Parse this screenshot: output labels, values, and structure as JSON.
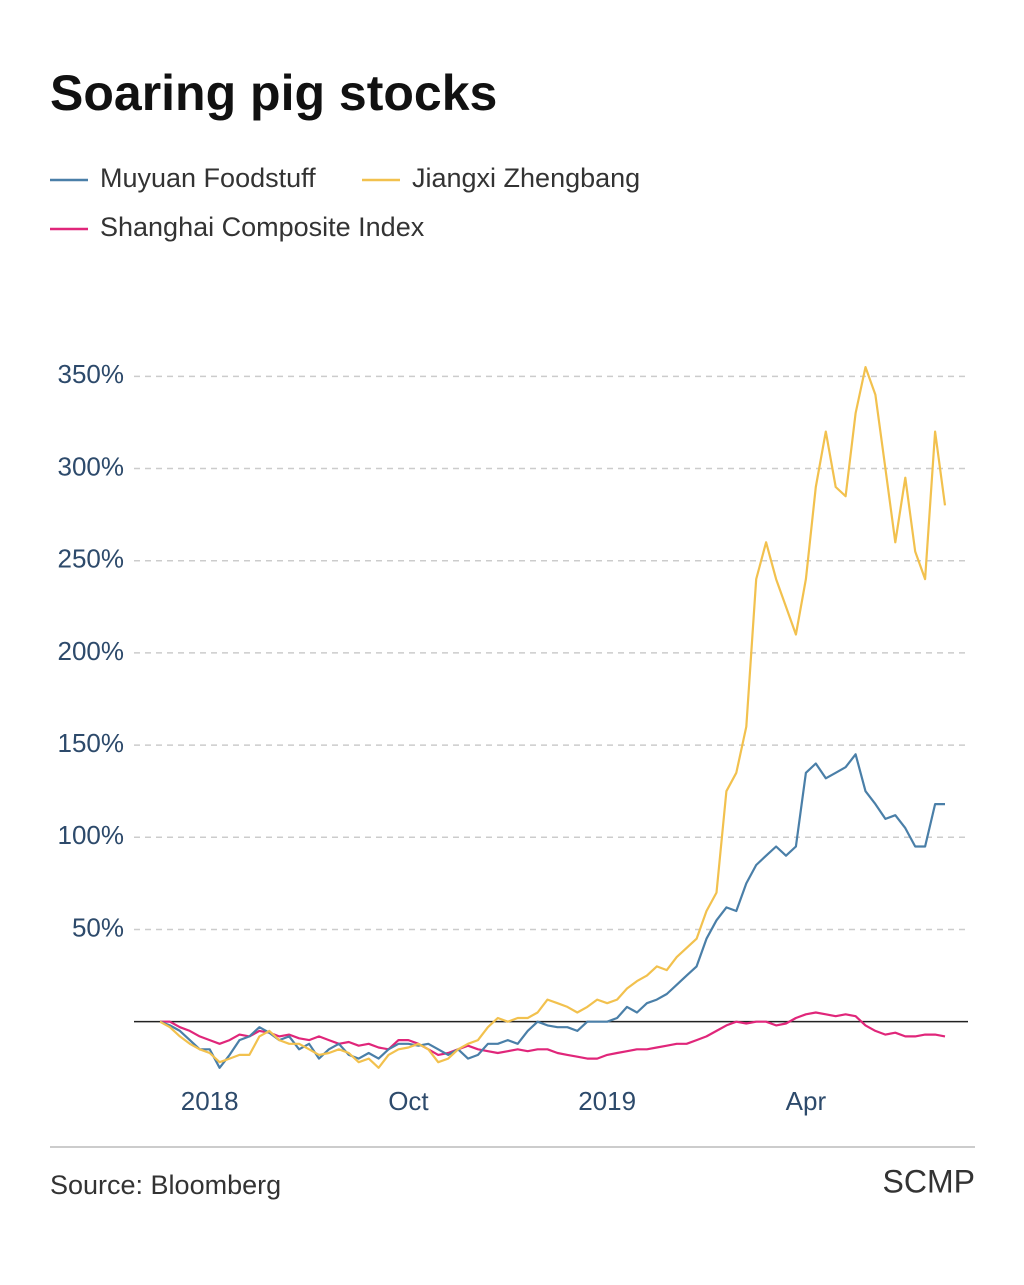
{
  "chart_data": {
    "type": "line",
    "title": "Soaring pig stocks",
    "source": "Source: Bloomberg",
    "credit": "SCMP",
    "categories": [
      null,
      null,
      null,
      null,
      null,
      "2018",
      null,
      null,
      null,
      null,
      null,
      null,
      null,
      null,
      null,
      null,
      null,
      null,
      null,
      null,
      null,
      null,
      null,
      null,
      null,
      "Oct",
      null,
      null,
      null,
      null,
      null,
      null,
      null,
      null,
      null,
      null,
      null,
      null,
      null,
      null,
      null,
      null,
      null,
      null,
      null,
      "2019",
      null,
      null,
      null,
      null,
      null,
      null,
      null,
      null,
      null,
      null,
      null,
      null,
      null,
      null,
      null,
      null,
      null,
      null,
      null,
      "Apr",
      null,
      null,
      null,
      null,
      null,
      null,
      null,
      null,
      null,
      null,
      null,
      null,
      null,
      null
    ],
    "series": [
      {
        "name": "Muyuan Foodstuff",
        "color": "#4a7fa8",
        "values": [
          0,
          -2,
          -5,
          -10,
          -15,
          -15,
          -25,
          -18,
          -10,
          -8,
          -3,
          -6,
          -10,
          -8,
          -15,
          -12,
          -20,
          -15,
          -12,
          -18,
          -20,
          -17,
          -20,
          -15,
          -12,
          -12,
          -13,
          -12,
          -15,
          -18,
          -15,
          -20,
          -18,
          -12,
          -12,
          -10,
          -12,
          -5,
          0,
          -2,
          -3,
          -3,
          -5,
          0,
          0,
          0,
          2,
          8,
          5,
          10,
          12,
          15,
          20,
          25,
          30,
          45,
          55,
          62,
          60,
          75,
          85,
          90,
          95,
          90,
          95,
          135,
          140,
          132,
          135,
          138,
          145,
          125,
          118,
          110,
          112,
          105,
          95,
          95,
          118,
          118
        ]
      },
      {
        "name": "Jiangxi Zhengbang",
        "color": "#f2c14e",
        "values": [
          0,
          -3,
          -8,
          -12,
          -15,
          -17,
          -22,
          -20,
          -18,
          -18,
          -8,
          -5,
          -10,
          -12,
          -12,
          -15,
          -18,
          -17,
          -15,
          -17,
          -22,
          -20,
          -25,
          -18,
          -15,
          -14,
          -12,
          -15,
          -22,
          -20,
          -15,
          -12,
          -10,
          -3,
          2,
          0,
          2,
          2,
          5,
          12,
          10,
          8,
          5,
          8,
          12,
          10,
          12,
          18,
          22,
          25,
          30,
          28,
          35,
          40,
          45,
          60,
          70,
          125,
          135,
          160,
          240,
          260,
          240,
          225,
          210,
          240,
          290,
          320,
          290,
          285,
          330,
          355,
          340,
          300,
          260,
          295,
          255,
          240,
          320,
          280
        ]
      },
      {
        "name": "Shanghai Composite Index",
        "color": "#e0267a",
        "values": [
          0,
          0,
          -3,
          -5,
          -8,
          -10,
          -12,
          -10,
          -7,
          -8,
          -5,
          -6,
          -8,
          -7,
          -9,
          -10,
          -8,
          -10,
          -12,
          -11,
          -13,
          -12,
          -14,
          -15,
          -10,
          -10,
          -12,
          -15,
          -18,
          -17,
          -15,
          -13,
          -15,
          -16,
          -17,
          -16,
          -15,
          -16,
          -15,
          -15,
          -17,
          -18,
          -19,
          -20,
          -20,
          -18,
          -17,
          -16,
          -15,
          -15,
          -14,
          -13,
          -12,
          -12,
          -10,
          -8,
          -5,
          -2,
          0,
          -1,
          0,
          0,
          -2,
          -1,
          2,
          4,
          5,
          4,
          3,
          4,
          3,
          -2,
          -5,
          -7,
          -6,
          -8,
          -8,
          -7,
          -7,
          -8
        ]
      }
    ],
    "ylim": [
      -30,
      380
    ],
    "yticks": [
      {
        "value": 50,
        "label": "50%"
      },
      {
        "value": 100,
        "label": "100%"
      },
      {
        "value": 150,
        "label": "150%"
      },
      {
        "value": 200,
        "label": "200%"
      },
      {
        "value": 250,
        "label": "250%"
      },
      {
        "value": 300,
        "label": "300%"
      },
      {
        "value": 350,
        "label": "350%"
      }
    ],
    "grid": true
  }
}
